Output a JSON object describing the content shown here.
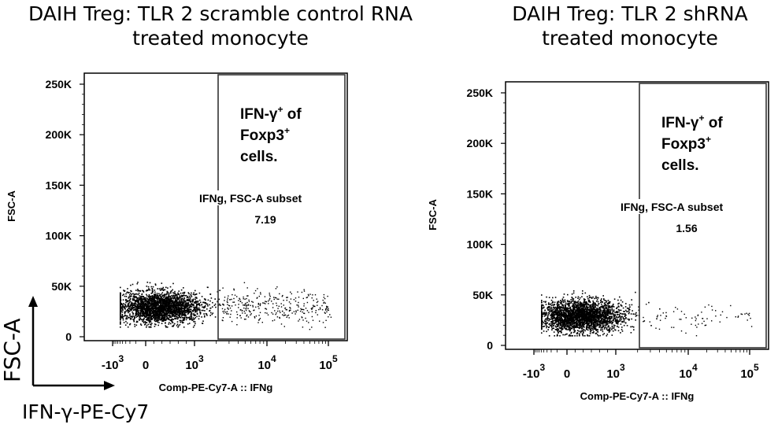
{
  "chart_data": [
    {
      "type": "scatter",
      "title_lines": [
        "DAIH Treg:  TLR 2 scramble control RNA",
        "treated monocyte"
      ],
      "xlabel": "Comp-PE-Cy7-A :: IFNg",
      "ylabel": "FSC-A",
      "y_ticks": [
        "250K",
        "200K",
        "150K",
        "100K",
        "50K",
        "0"
      ],
      "y_tick_values": [
        250000,
        200000,
        150000,
        100000,
        50000,
        0
      ],
      "x_ticks": [
        {
          "base": "-10",
          "exp": "3"
        },
        {
          "base": "0",
          "exp": ""
        },
        {
          "base": "10",
          "exp": "3"
        },
        {
          "base": "10",
          "exp": "4"
        },
        {
          "base": "10",
          "exp": "5"
        }
      ],
      "gate": {
        "label_lines": [
          "IFN-γ",
          "Foxp3",
          "cells."
        ],
        "label_sup": [
          "+ of",
          "+",
          ""
        ],
        "subset_name": "IFNg, FSC-A subset",
        "percent": "7.19"
      },
      "events": {
        "negative_count": 2600,
        "positive_count": 320
      }
    },
    {
      "type": "scatter",
      "title_lines": [
        "DAIH Treg:  TLR 2 shRNA",
        "treated monocyte"
      ],
      "xlabel": "Comp-PE-Cy7-A :: IFNg",
      "ylabel": "FSC-A",
      "y_ticks": [
        "250K",
        "200K",
        "150K",
        "100K",
        "50K",
        "0"
      ],
      "y_tick_values": [
        250000,
        200000,
        150000,
        100000,
        50000,
        0
      ],
      "x_ticks": [
        {
          "base": "-10",
          "exp": "3"
        },
        {
          "base": "0",
          "exp": ""
        },
        {
          "base": "10",
          "exp": "3"
        },
        {
          "base": "10",
          "exp": "4"
        },
        {
          "base": "10",
          "exp": "5"
        }
      ],
      "gate": {
        "label_lines": [
          "IFN-γ",
          "Foxp3",
          "cells."
        ],
        "label_sup": [
          "+ of",
          "+",
          ""
        ],
        "subset_name": "IFNg, FSC-A subset",
        "percent": "1.56"
      },
      "events": {
        "negative_count": 2700,
        "positive_count": 70
      }
    }
  ],
  "legend": {
    "y_axis": "FSC-A",
    "x_axis": "IFN-γ-PE-Cy7"
  }
}
